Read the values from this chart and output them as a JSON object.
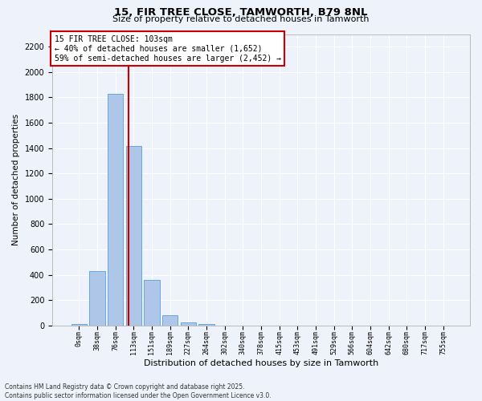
{
  "title1": "15, FIR TREE CLOSE, TAMWORTH, B79 8NL",
  "title2": "Size of property relative to detached houses in Tamworth",
  "xlabel": "Distribution of detached houses by size in Tamworth",
  "ylabel": "Number of detached properties",
  "bar_labels": [
    "0sqm",
    "38sqm",
    "76sqm",
    "113sqm",
    "151sqm",
    "189sqm",
    "227sqm",
    "264sqm",
    "302sqm",
    "340sqm",
    "378sqm",
    "415sqm",
    "453sqm",
    "491sqm",
    "529sqm",
    "566sqm",
    "604sqm",
    "642sqm",
    "680sqm",
    "717sqm",
    "755sqm"
  ],
  "bar_values": [
    10,
    430,
    1830,
    1415,
    360,
    80,
    25,
    10,
    0,
    0,
    0,
    0,
    0,
    0,
    0,
    0,
    0,
    0,
    0,
    0,
    0
  ],
  "bar_color": "#aec6e8",
  "bar_edgecolor": "#5a9fd4",
  "vline_x": 2.7,
  "vline_color": "#cc0000",
  "annotation_title": "15 FIR TREE CLOSE: 103sqm",
  "annotation_line1": "← 40% of detached houses are smaller (1,652)",
  "annotation_line2": "59% of semi-detached houses are larger (2,452) →",
  "annotation_box_color": "#cc0000",
  "ylim": [
    0,
    2300
  ],
  "yticks": [
    0,
    200,
    400,
    600,
    800,
    1000,
    1200,
    1400,
    1600,
    1800,
    2000,
    2200
  ],
  "background_color": "#eef2fb",
  "grid_color": "#ffffff",
  "footer1": "Contains HM Land Registry data © Crown copyright and database right 2025.",
  "footer2": "Contains public sector information licensed under the Open Government Licence v3.0."
}
